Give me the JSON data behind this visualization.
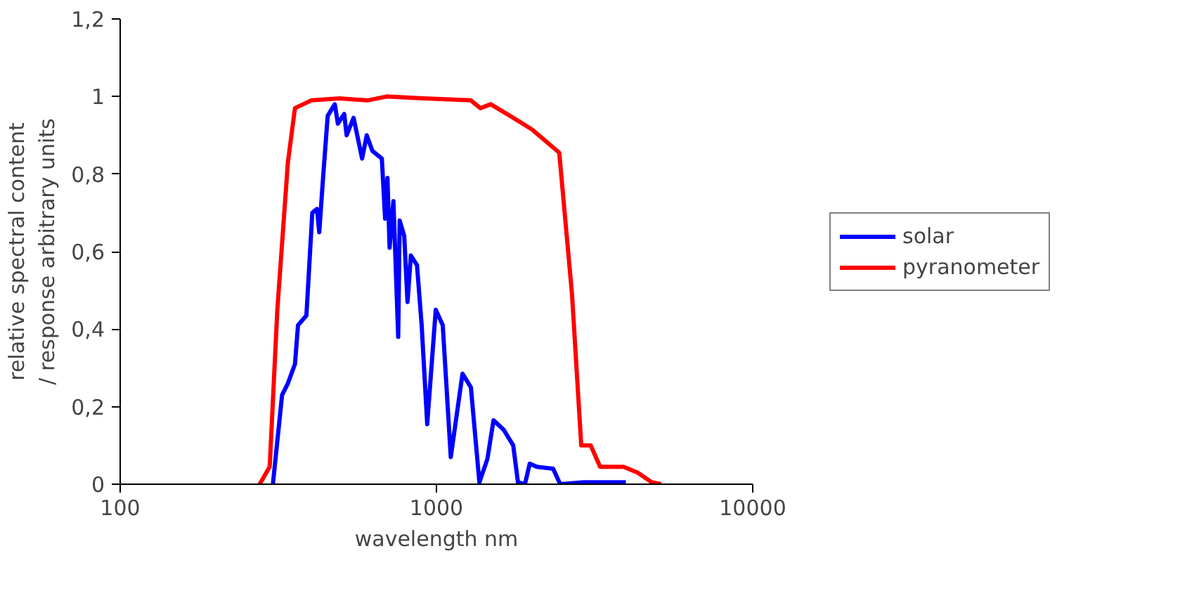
{
  "chart_data": {
    "type": "line",
    "xlabel": "wavelength nm",
    "ylabel": "relative spectral content / response arbitrary units",
    "log": "x",
    "xlim": [
      100,
      10000
    ],
    "xticks": [
      100,
      1000,
      10000
    ],
    "ylim": [
      0,
      1.2
    ],
    "yticks": [
      0,
      {
        "value": 0.2,
        "label": "0,2"
      },
      {
        "value": 0.4,
        "label": "0,4"
      },
      {
        "value": 0.6,
        "label": "0,6"
      },
      {
        "value": 0.8,
        "label": "0,8"
      },
      1,
      {
        "value": 1.2,
        "label": "1,2"
      }
    ],
    "grid": false,
    "legend": "right",
    "marker": "none",
    "line_style": "solid",
    "series": [
      {
        "name": "solar",
        "color": "#0000ff",
        "x": [
          304,
          325,
          339,
          357,
          365,
          388,
          405,
          419,
          426,
          438,
          453,
          477,
          488,
          511,
          520,
          547,
          582,
          602,
          627,
          672,
          688,
          700,
          711,
          731,
          757,
          765,
          791,
          810,
          830,
          868,
          898,
          935,
          995,
          1047,
          1110,
          1209,
          1285,
          1367,
          1449,
          1515,
          1633,
          1749,
          1810,
          1905,
          1972,
          2077,
          2339,
          2462,
          2921,
          3972
        ],
        "values": [
          0,
          0.23,
          0.26,
          0.31,
          0.41,
          0.435,
          0.7,
          0.71,
          0.65,
          0.79,
          0.95,
          0.98,
          0.93,
          0.955,
          0.9,
          0.945,
          0.84,
          0.9,
          0.86,
          0.84,
          0.685,
          0.79,
          0.61,
          0.73,
          0.38,
          0.68,
          0.64,
          0.47,
          0.59,
          0.565,
          0.41,
          0.155,
          0.45,
          0.41,
          0.07,
          0.285,
          0.25,
          0.005,
          0.065,
          0.165,
          0.14,
          0.1,
          0.005,
          0,
          0.053,
          0.045,
          0.04,
          0,
          0.005,
          0.005
        ]
      },
      {
        "name": "pyranometer",
        "color": "#ff0000",
        "x": [
          276,
          297,
          314,
          339,
          357,
          402,
          494,
          606,
          695,
          914,
          1285,
          1377,
          1485,
          1749,
          2005,
          2445,
          2683,
          2870,
          3074,
          3292,
          3905,
          4326,
          4794,
          5135
        ],
        "values": [
          0,
          0.045,
          0.45,
          0.83,
          0.97,
          0.99,
          0.995,
          0.99,
          1.0,
          0.995,
          0.99,
          0.97,
          0.98,
          0.945,
          0.915,
          0.855,
          0.49,
          0.1,
          0.1,
          0.045,
          0.045,
          0.03,
          0.005,
          0
        ]
      }
    ]
  }
}
